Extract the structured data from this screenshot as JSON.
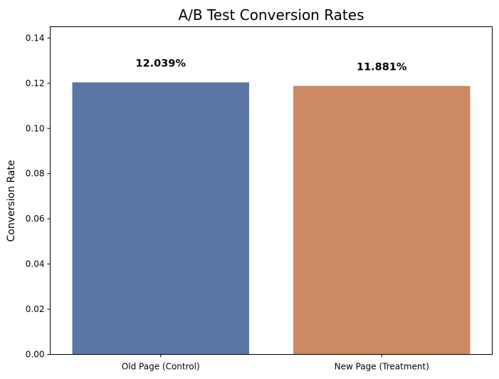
{
  "chart_data": {
    "type": "bar",
    "title": "A/B Test Conversion Rates",
    "xlabel": "",
    "ylabel": "Conversion Rate",
    "categories": [
      "Old Page (Control)",
      "New Page (Treatment)"
    ],
    "values": [
      0.12039,
      0.11881
    ],
    "data_labels": [
      "12.039%",
      "11.881%"
    ],
    "colors": [
      "#5975a4",
      "#cc8963"
    ],
    "ylim": [
      0,
      0.145
    ],
    "yticks": [
      0.0,
      0.02,
      0.04,
      0.06,
      0.08,
      0.1,
      0.12,
      0.14
    ],
    "ytick_labels": [
      "0.00",
      "0.02",
      "0.04",
      "0.06",
      "0.08",
      "0.10",
      "0.12",
      "0.14"
    ],
    "grid": false,
    "legend": "none"
  }
}
